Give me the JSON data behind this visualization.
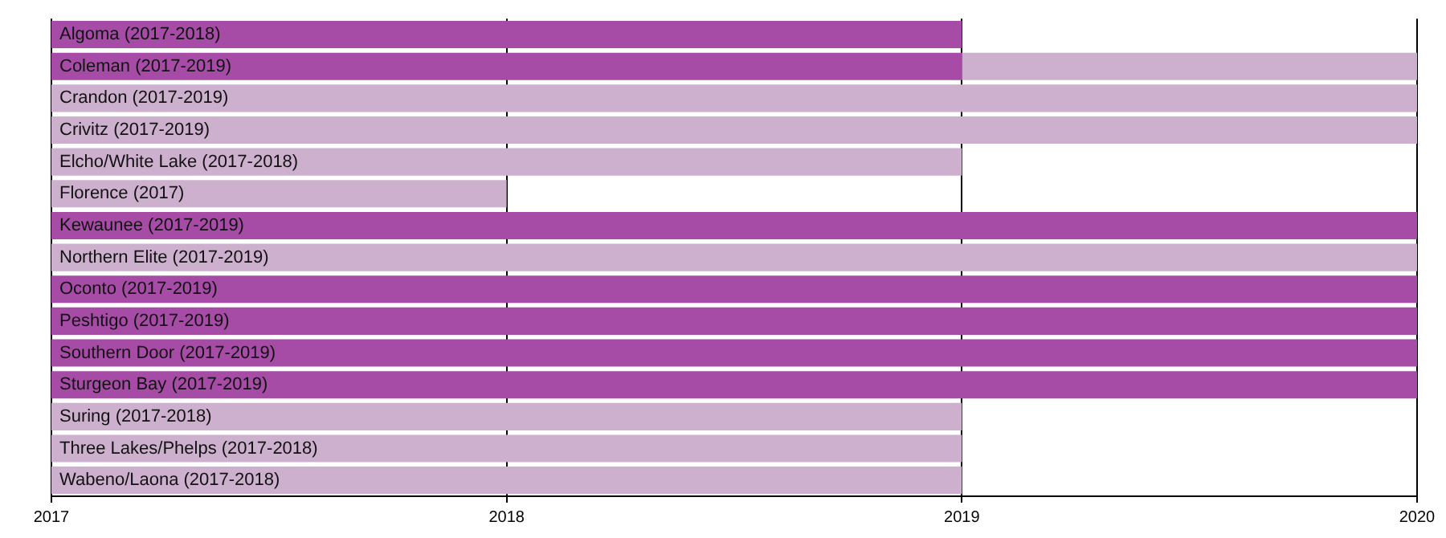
{
  "chart_data": {
    "type": "bar",
    "orientation": "horizontal",
    "categories": [
      "Algoma (2017-2018)",
      "Coleman (2017-2019)",
      "Crandon (2017-2019)",
      "Crivitz (2017-2019)",
      "Elcho/White Lake (2017-2018)",
      "Florence (2017)",
      "Kewaunee (2017-2019)",
      "Northern Elite (2017-2019)",
      "Oconto (2017-2019)",
      "Peshtigo (2017-2019)",
      "Southern Door (2017-2019)",
      "Sturgeon Bay (2017-2019)",
      "Suring (2017-2018)",
      "Three Lakes/Phelps (2017-2018)",
      "Wabeno/Laona (2017-2018)"
    ],
    "series": [
      {
        "base": [
          2017,
          2017,
          2017,
          2017,
          2017,
          2017,
          2017,
          2017,
          2017,
          2017,
          2017,
          2017,
          2017,
          2017,
          2017
        ],
        "values": [
          2,
          2,
          3,
          3,
          2,
          1,
          3,
          3,
          3,
          3,
          3,
          3,
          2,
          2,
          2
        ],
        "colors": [
          "#a64ca6",
          "#a64ca6",
          "#cdb0cd",
          "#cdb0cd",
          "#cdb0cd",
          "#cdb0cd",
          "#a64ca6",
          "#cdb0cd",
          "#a64ca6",
          "#a64ca6",
          "#a64ca6",
          "#a64ca6",
          "#cdb0cd",
          "#cdb0cd",
          "#cdb0cd"
        ]
      },
      {
        "base": [
          null,
          2019,
          null,
          null,
          null,
          null,
          null,
          null,
          null,
          null,
          null,
          null,
          null,
          null,
          null
        ],
        "values": [
          null,
          1,
          null,
          null,
          null,
          null,
          null,
          null,
          null,
          null,
          null,
          null,
          null,
          null,
          null
        ],
        "color": "#cdb0cd"
      }
    ],
    "xlim": [
      2017,
      2020
    ],
    "xticks": [
      2017,
      2018,
      2019,
      2020
    ],
    "grid": "x",
    "legend": false
  }
}
